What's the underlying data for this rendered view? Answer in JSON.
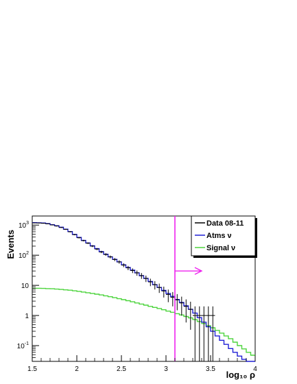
{
  "chart_data": {
    "type": "line",
    "xlabel": "log₁₀ ρ",
    "ylabel": "Events",
    "xlim": [
      1.5,
      4.0
    ],
    "ylim": [
      0.03,
      2000
    ],
    "y_scale": "log",
    "grid": false,
    "legend_position": "top-right",
    "x_ticks": [
      "1.5",
      "2",
      "2.5",
      "3",
      "3.5",
      "4"
    ],
    "y_ticks": [
      {
        "value": 0.1,
        "base": "10",
        "exp": "-1"
      },
      {
        "value": 1,
        "base": "1",
        "exp": ""
      },
      {
        "value": 10,
        "base": "10",
        "exp": ""
      },
      {
        "value": 100,
        "base": "10",
        "exp": "2"
      },
      {
        "value": 1000,
        "base": "10",
        "exp": "3"
      }
    ],
    "bin_width": 0.05,
    "bin_start": 1.5,
    "cut_value": 3.1,
    "cut_arrow_to": 3.4,
    "cut_arrow_y": 30,
    "series": [
      {
        "name": "Data 08-11",
        "color": "#000000",
        "style": "points_with_errors",
        "x": [
          1.525,
          1.575,
          1.625,
          1.675,
          1.725,
          1.775,
          1.825,
          1.875,
          1.925,
          1.975,
          2.025,
          2.075,
          2.125,
          2.175,
          2.225,
          2.275,
          2.325,
          2.375,
          2.425,
          2.475,
          2.525,
          2.575,
          2.625,
          2.675,
          2.725,
          2.775,
          2.825,
          2.875,
          2.925,
          2.975,
          3.025,
          3.075,
          3.125,
          3.175,
          3.225,
          3.275,
          3.325,
          3.375,
          3.425,
          3.475,
          3.525
        ],
        "y": [
          1180,
          1170,
          1150,
          1100,
          1010,
          930,
          830,
          720,
          600,
          480,
          380,
          305,
          250,
          200,
          160,
          128,
          106,
          88,
          72,
          60,
          47,
          38,
          31,
          26,
          21,
          17,
          13,
          10.5,
          8.5,
          6.5,
          5,
          4,
          3.3,
          2.6,
          2.0,
          1.6,
          1.0,
          1.0,
          1.0,
          1.0,
          1.0
        ]
      },
      {
        "name": "Atms ν",
        "color": "#1f1fd6",
        "style": "step",
        "values": [
          1200,
          1190,
          1170,
          1120,
          1030,
          950,
          850,
          730,
          610,
          490,
          390,
          310,
          255,
          205,
          165,
          132,
          108,
          88,
          73,
          60,
          48,
          39,
          32,
          26,
          21,
          17,
          13.5,
          10.5,
          8.5,
          6.8,
          5.4,
          4.3,
          3.4,
          2.7,
          2.1,
          1.6,
          1.2,
          0.85,
          0.6,
          0.42,
          0.3,
          0.21,
          0.15,
          0.11,
          0.08,
          0.06,
          0.045,
          0.035,
          0.03,
          0.03
        ]
      },
      {
        "name": "Signal ν",
        "color": "#4cd43c",
        "style": "step",
        "values": [
          8,
          8,
          7.9,
          7.8,
          7.7,
          7.5,
          7.3,
          7.1,
          6.9,
          6.6,
          6.3,
          6.0,
          5.7,
          5.4,
          5.1,
          4.8,
          4.5,
          4.2,
          3.9,
          3.6,
          3.35,
          3.1,
          2.85,
          2.6,
          2.4,
          2.2,
          2.0,
          1.85,
          1.7,
          1.55,
          1.4,
          1.28,
          1.15,
          1.04,
          0.93,
          0.83,
          0.73,
          0.63,
          0.54,
          0.46,
          0.39,
          0.32,
          0.26,
          0.21,
          0.17,
          0.13,
          0.1,
          0.078,
          0.06,
          0.048
        ]
      }
    ]
  }
}
